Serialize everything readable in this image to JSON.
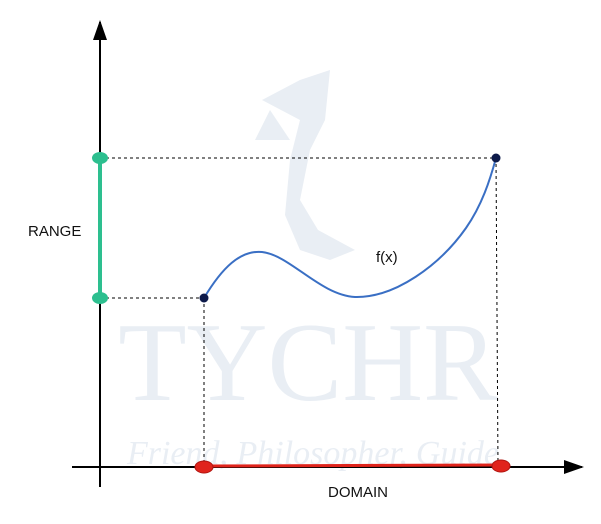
{
  "labels": {
    "range": "RANGE",
    "domain": "DOMAIN",
    "function": "f(x)"
  },
  "watermark": {
    "title": "TYCHR",
    "tagline": "Friend, Philosopher, Guide"
  },
  "colors": {
    "axis": "#000000",
    "range": "#2dbf8f",
    "domain": "#e0241c",
    "curve": "#3a6fc4",
    "endpoint": "#0d1a4a",
    "guide": "#000000",
    "watermark": "#e9eef4"
  }
}
